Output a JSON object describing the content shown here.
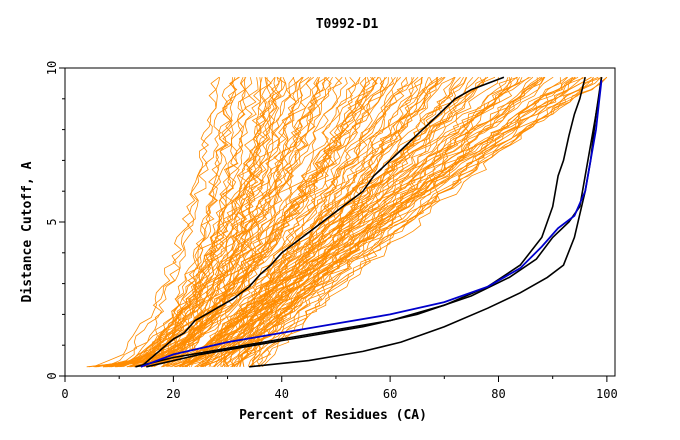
{
  "chart_data": {
    "type": "line",
    "title": "T0992-D1",
    "xlabel": "Percent of Residues (CA)",
    "ylabel": "Distance Cutoff, A",
    "xlim": [
      0,
      100
    ],
    "ylim": [
      0,
      10
    ],
    "x_ticks": [
      "0",
      "20",
      "40",
      "60",
      "80",
      "100"
    ],
    "y_ticks": [
      "0",
      "5",
      "10"
    ],
    "grid": false,
    "legend": "none",
    "colors": {
      "background_models": "#ff8c00",
      "highlight_models": "#000000",
      "reference_model": "#0000cc",
      "axes": "#000000"
    },
    "highlight_series": [
      {
        "color": "black",
        "x": [
          14,
          16,
          18,
          20,
          22,
          24,
          26,
          28,
          31,
          34,
          36,
          38,
          40,
          43,
          46,
          49,
          52,
          55,
          57,
          60,
          63,
          66,
          69,
          72,
          75,
          78,
          81
        ],
        "y": [
          0.3,
          0.6,
          0.9,
          1.2,
          1.4,
          1.8,
          2.0,
          2.2,
          2.5,
          2.9,
          3.3,
          3.6,
          4.0,
          4.4,
          4.8,
          5.2,
          5.6,
          6.0,
          6.5,
          7.0,
          7.5,
          8.0,
          8.5,
          9.0,
          9.3,
          9.5,
          9.7
        ]
      },
      {
        "color": "black",
        "x": [
          13,
          20,
          30,
          40,
          50,
          60,
          70,
          78,
          84,
          88,
          90,
          91,
          92,
          93,
          94,
          95,
          96
        ],
        "y": [
          0.3,
          0.6,
          0.9,
          1.2,
          1.5,
          1.8,
          2.3,
          2.9,
          3.6,
          4.5,
          5.5,
          6.5,
          7.0,
          7.8,
          8.5,
          9.0,
          9.7
        ]
      },
      {
        "color": "black",
        "x": [
          34,
          45,
          55,
          62,
          70,
          78,
          84,
          89,
          92,
          94,
          96,
          97,
          98,
          99
        ],
        "y": [
          0.3,
          0.5,
          0.8,
          1.1,
          1.6,
          2.2,
          2.7,
          3.2,
          3.6,
          4.5,
          6.0,
          7.0,
          8.5,
          9.7
        ]
      },
      {
        "color": "black",
        "x": [
          15,
          25,
          35,
          45,
          55,
          65,
          75,
          82,
          87,
          90,
          93,
          95,
          96,
          97,
          97.5,
          98,
          98.5,
          99
        ],
        "y": [
          0.3,
          0.7,
          1.0,
          1.3,
          1.6,
          2.0,
          2.6,
          3.2,
          3.8,
          4.5,
          5.0,
          5.5,
          6.5,
          7.5,
          8.0,
          8.5,
          9.0,
          9.7
        ]
      }
    ],
    "reference_series": {
      "color": "blue",
      "x": [
        14,
        20,
        30,
        40,
        50,
        60,
        70,
        78,
        84,
        88,
        91,
        94,
        96,
        97,
        98,
        98.5,
        99
      ],
      "y": [
        0.3,
        0.7,
        1.1,
        1.4,
        1.7,
        2.0,
        2.4,
        2.9,
        3.5,
        4.2,
        4.8,
        5.2,
        6.0,
        7.0,
        8.0,
        8.8,
        9.6
      ]
    },
    "background_band": {
      "count": 130,
      "description_of_spread": "orange model curves spread from x≈5 at 0.3 A to x≈100 at 9.7 A"
    }
  }
}
